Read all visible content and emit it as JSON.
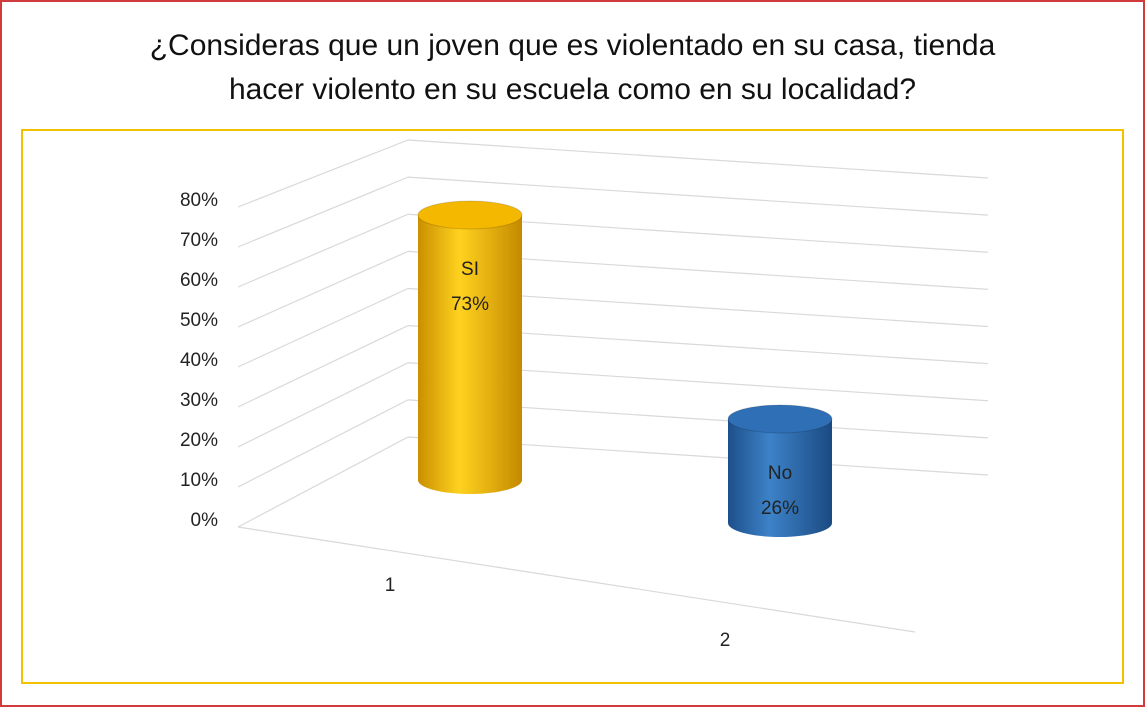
{
  "chart_data": {
    "type": "bar3d",
    "title": "¿Consideras que un joven que es violentado en su casa, tienda hacer violento en su escuela como en su localidad?",
    "categories": [
      "1",
      "2"
    ],
    "point_names": [
      "SI",
      "No"
    ],
    "values": [
      73,
      26
    ],
    "value_labels": [
      "73%",
      "26%"
    ],
    "colors": [
      "#f5b800",
      "#2e6fb5"
    ],
    "ylim": [
      0,
      80
    ],
    "yticks": [
      {
        "value": 0,
        "label": "0%"
      },
      {
        "value": 10,
        "label": "10%"
      },
      {
        "value": 20,
        "label": "20%"
      },
      {
        "value": 30,
        "label": "30%"
      },
      {
        "value": 40,
        "label": "40%"
      },
      {
        "value": 50,
        "label": "50%"
      },
      {
        "value": 60,
        "label": "60%"
      },
      {
        "value": 70,
        "label": "70%"
      },
      {
        "value": 80,
        "label": "80%"
      }
    ],
    "grid": true
  }
}
